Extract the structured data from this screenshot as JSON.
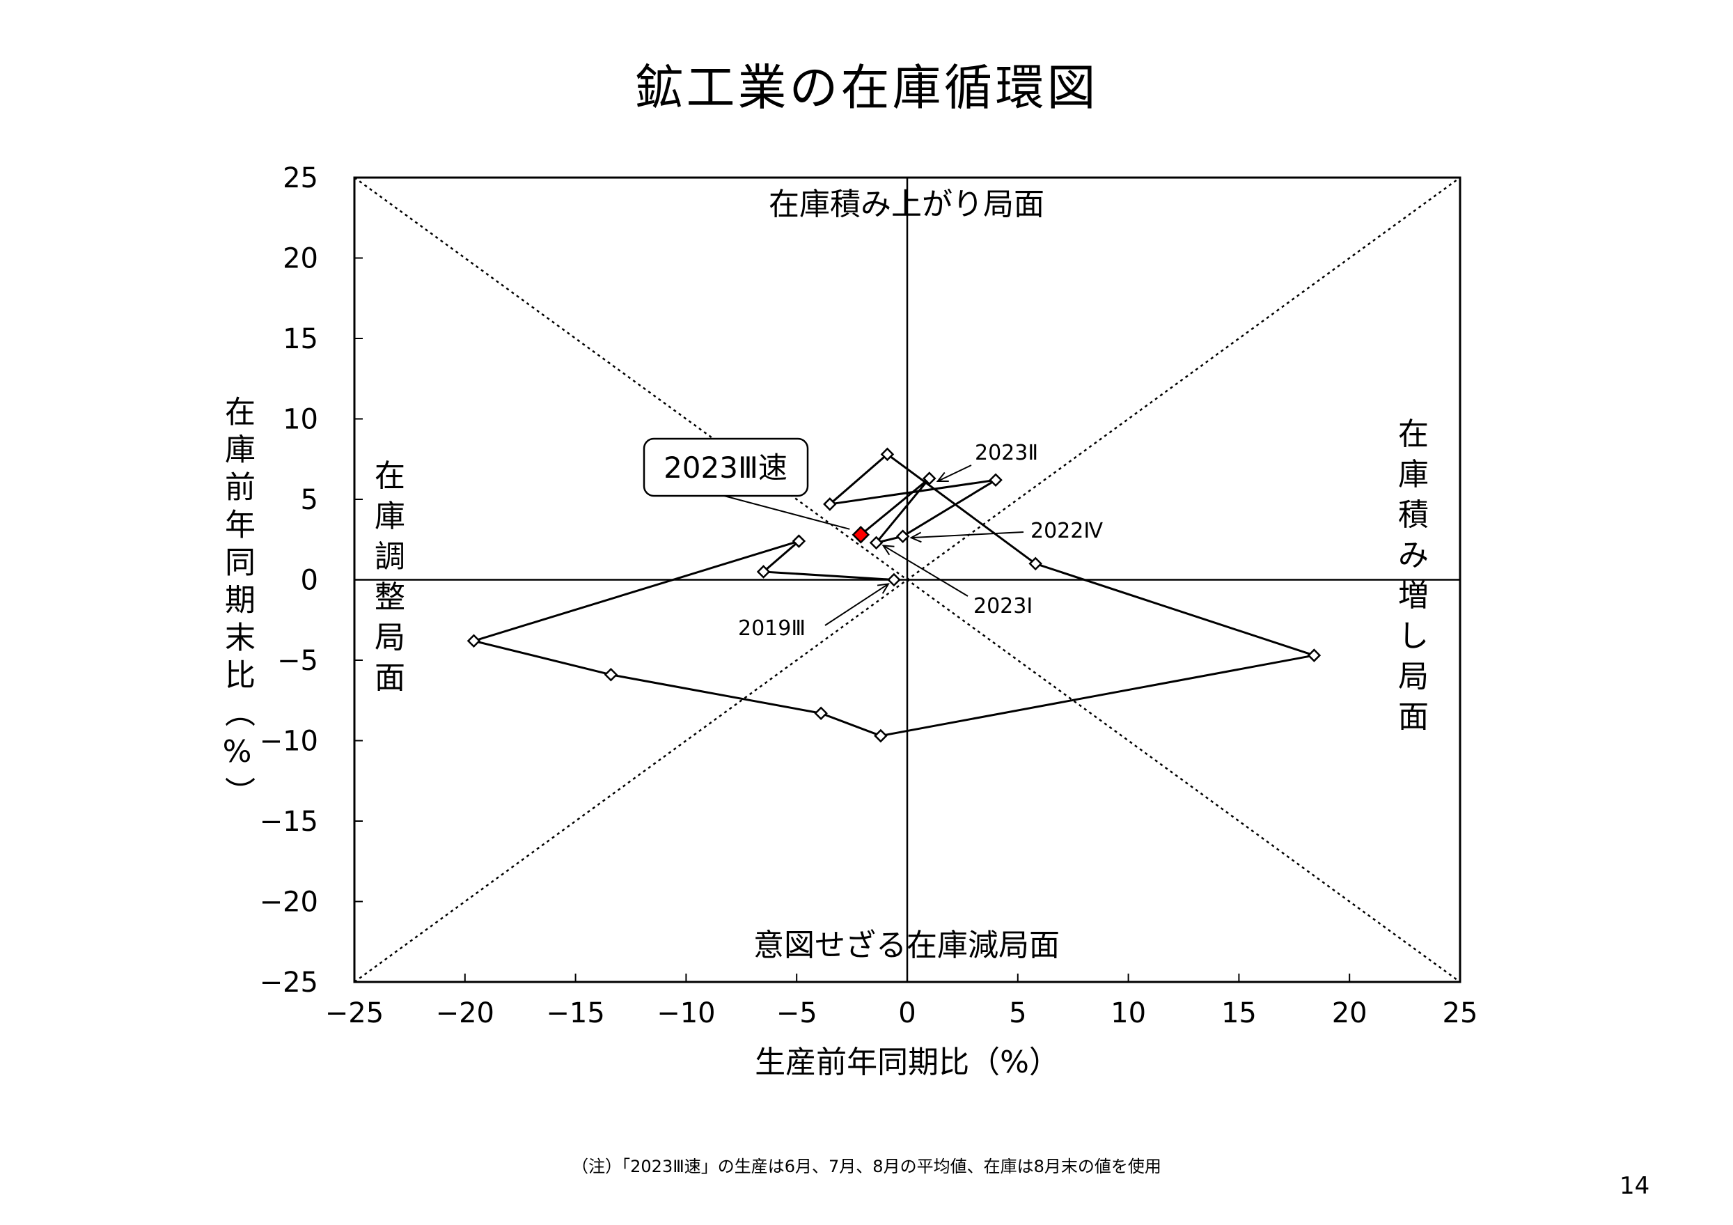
{
  "title": "鉱工業の在庫循環図",
  "note": "（注）「2023Ⅲ速」の生産は6月、7月、8月の平均値、在庫は8月末の値を使用",
  "page_number": "14",
  "chart_data": {
    "type": "line",
    "xlabel": "生産前年同期比（%）",
    "ylabel": "在庫前年同期末比（%）",
    "xlim": [
      -25,
      25
    ],
    "ylim": [
      -25,
      25
    ],
    "xticks": [
      "−25",
      "−20",
      "−15",
      "−10",
      "−5",
      "0",
      "5",
      "10",
      "15",
      "20",
      "25"
    ],
    "yticks": [
      "25",
      "20",
      "15",
      "10",
      "5",
      "0",
      "−5",
      "−10",
      "−15",
      "−20",
      "−25"
    ],
    "grid": false,
    "reference_lines": "y = x and y = −x (dotted)",
    "regions": {
      "top": "在庫積み上がり局面",
      "bottom": "意図せざる在庫減局面",
      "left": "在庫調整局面",
      "right": "在庫積み増し局面"
    },
    "series": [
      {
        "points": [
          {
            "x": -0.6,
            "y": 0.0,
            "label": "2019Ⅲ"
          },
          {
            "x": -6.5,
            "y": 0.5
          },
          {
            "x": -4.9,
            "y": 2.4
          },
          {
            "x": -19.6,
            "y": -3.8
          },
          {
            "x": -13.4,
            "y": -5.9
          },
          {
            "x": -3.9,
            "y": -8.3
          },
          {
            "x": -1.2,
            "y": -9.7
          },
          {
            "x": 18.4,
            "y": -4.7
          },
          {
            "x": 5.8,
            "y": 1.0
          },
          {
            "x": -0.9,
            "y": 7.8
          },
          {
            "x": -3.5,
            "y": 4.7
          },
          {
            "x": 4.0,
            "y": 6.2
          },
          {
            "x": -0.2,
            "y": 2.7,
            "label": "2022Ⅳ"
          },
          {
            "x": -1.4,
            "y": 2.3,
            "label": "2023Ⅰ"
          },
          {
            "x": 1.0,
            "y": 6.3,
            "label": "2023Ⅱ"
          },
          {
            "x": -2.1,
            "y": 2.8,
            "label": "2023Ⅲ速",
            "highlight": true
          }
        ]
      }
    ],
    "colors": {
      "line": "#000000",
      "marker_fill": "#ffffff",
      "highlight_fill": "#ff0000"
    }
  }
}
